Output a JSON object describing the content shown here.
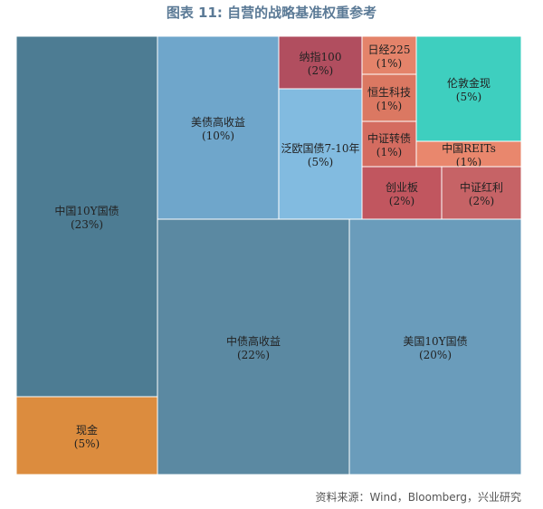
{
  "title": "图表 11: 自营的战略基准权重参考",
  "source": "资料来源：Wind，Bloomberg，兴业研究",
  "chart_data": {
    "type": "treemap",
    "title": "图表 11: 自营的战略基准权重参考",
    "items": [
      {
        "label": "中国10Y国债",
        "pct": "(23%)",
        "value": 23,
        "color": "#4d7c93"
      },
      {
        "label": "现金",
        "pct": "(5%)",
        "value": 5,
        "color": "#dc8c3e"
      },
      {
        "label": "美债高收益",
        "pct": "(10%)",
        "value": 10,
        "color": "#6fa6cb"
      },
      {
        "label": "纳指100",
        "pct": "(2%)",
        "value": 2,
        "color": "#b14e5f"
      },
      {
        "label": "泛欧国债7-10年",
        "pct": "(5%)",
        "value": 5,
        "color": "#82bbe0"
      },
      {
        "label": "日经225",
        "pct": "(1%)",
        "value": 1,
        "color": "#e4836a"
      },
      {
        "label": "恒生科技",
        "pct": "(1%)",
        "value": 1,
        "color": "#db7862"
      },
      {
        "label": "中证转债",
        "pct": "(1%)",
        "value": 1,
        "color": "#d46c60"
      },
      {
        "label": "伦敦金现",
        "pct": "(5%)",
        "value": 5,
        "color": "#3ecfbf"
      },
      {
        "label": "中国REITs",
        "pct": "(1%)",
        "value": 1,
        "color": "#e9876d"
      },
      {
        "label": "创业板",
        "pct": "(2%)",
        "value": 2,
        "color": "#c1565f"
      },
      {
        "label": "中证红利",
        "pct": "(2%)",
        "value": 2,
        "color": "#c66366"
      },
      {
        "label": "中债高收益",
        "pct": "(22%)",
        "value": 22,
        "color": "#5b89a2"
      },
      {
        "label": "美国10Y国债",
        "pct": "(20%)",
        "value": 20,
        "color": "#6a9cbb"
      }
    ]
  }
}
